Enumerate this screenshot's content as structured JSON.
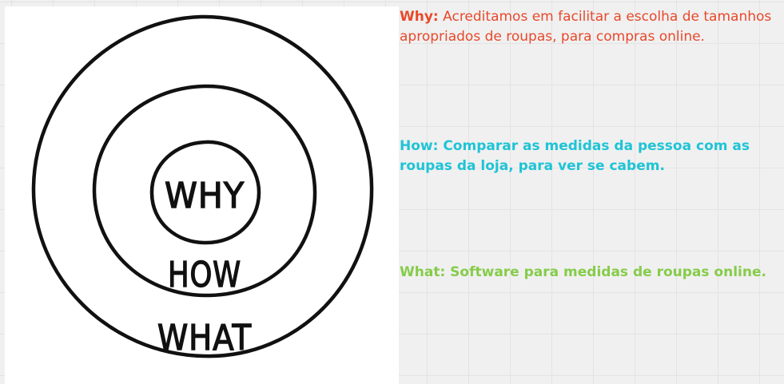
{
  "diagram": {
    "rings": [
      {
        "label": "WHY"
      },
      {
        "label": "HOW"
      },
      {
        "label": "WHAT"
      }
    ]
  },
  "notes": {
    "why": {
      "label": "Why:",
      "text": "Acreditamos em facilitar a escolha de tamanhos apropriados de roupas, para compras online.",
      "color": "#e8492b"
    },
    "how": {
      "text": "How: Comparar as medidas da pessoa com as roupas da loja, para ver se cabem.",
      "color": "#1ec4d6"
    },
    "what": {
      "text": "What: Software para medidas de roupas online.",
      "color": "#86cc4a"
    }
  }
}
